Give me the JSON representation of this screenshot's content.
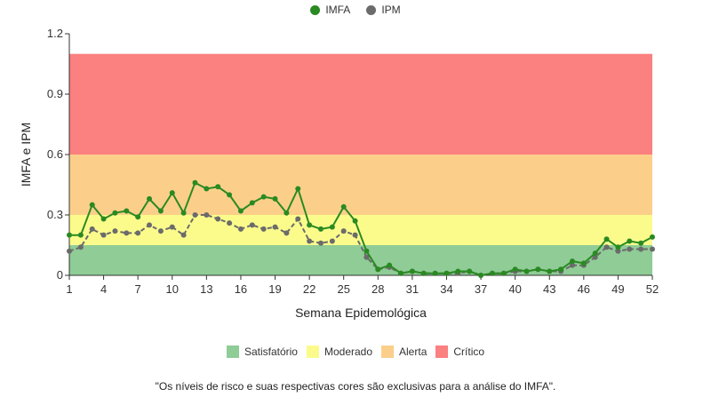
{
  "chart_data": {
    "type": "line",
    "title": "",
    "xlabel": "Semana Epidemológica",
    "ylabel": "IMFA e IPM",
    "xlim": [
      1,
      52
    ],
    "ylim": [
      0,
      1.2
    ],
    "x_ticks": [
      1,
      4,
      7,
      10,
      13,
      16,
      19,
      22,
      25,
      28,
      31,
      34,
      37,
      40,
      43,
      46,
      49,
      52
    ],
    "y_ticks": [
      0,
      0.3,
      0.6,
      0.9,
      1.2
    ],
    "y_tick_labels": [
      "0",
      "0.3",
      "0.6",
      "0.9",
      "1.2"
    ],
    "x": [
      1,
      2,
      3,
      4,
      5,
      6,
      7,
      8,
      9,
      10,
      11,
      12,
      13,
      14,
      15,
      16,
      17,
      18,
      19,
      20,
      21,
      22,
      23,
      24,
      25,
      26,
      27,
      28,
      29,
      30,
      31,
      32,
      33,
      34,
      35,
      36,
      37,
      38,
      39,
      40,
      41,
      42,
      43,
      44,
      45,
      46,
      47,
      48,
      49,
      50,
      51,
      52
    ],
    "series": [
      {
        "name": "IMFA",
        "color": "#2a8a22",
        "style": "solid",
        "values": [
          0.2,
          0.2,
          0.35,
          0.28,
          0.31,
          0.32,
          0.29,
          0.38,
          0.32,
          0.41,
          0.31,
          0.46,
          0.43,
          0.44,
          0.4,
          0.32,
          0.36,
          0.39,
          0.38,
          0.31,
          0.43,
          0.25,
          0.23,
          0.24,
          0.34,
          0.27,
          0.12,
          0.03,
          0.05,
          0.01,
          0.02,
          0.01,
          0.01,
          0.01,
          0.02,
          0.02,
          0.0,
          0.01,
          0.01,
          0.03,
          0.02,
          0.03,
          0.02,
          0.03,
          0.07,
          0.06,
          0.11,
          0.18,
          0.14,
          0.17,
          0.16,
          0.19
        ]
      },
      {
        "name": "IPM",
        "color": "#6b6b6b",
        "style": "dashed",
        "values": [
          0.12,
          0.14,
          0.23,
          0.2,
          0.22,
          0.21,
          0.21,
          0.25,
          0.22,
          0.24,
          0.2,
          0.3,
          0.3,
          0.28,
          0.26,
          0.23,
          0.25,
          0.23,
          0.24,
          0.21,
          0.28,
          0.17,
          0.16,
          0.17,
          0.22,
          0.2,
          0.09,
          0.03,
          0.04,
          0.01,
          0.02,
          0.01,
          0.01,
          0.01,
          0.01,
          0.02,
          0.0,
          0.01,
          0.01,
          0.02,
          0.02,
          0.03,
          0.02,
          0.02,
          0.05,
          0.05,
          0.09,
          0.14,
          0.12,
          0.13,
          0.13,
          0.13
        ]
      }
    ],
    "bands": [
      {
        "label": "Satisfatório",
        "from": 0,
        "to": 0.15,
        "color": "#8fcc96"
      },
      {
        "label": "Moderado",
        "from": 0.15,
        "to": 0.3,
        "color": "#fbfb8c"
      },
      {
        "label": "Alerta",
        "from": 0.3,
        "to": 0.6,
        "color": "#fbcf8a"
      },
      {
        "label": "Crítico",
        "from": 0.6,
        "to": 1.1,
        "color": "#fb8080"
      }
    ],
    "legend_position": "top-center",
    "band_legend_position": "bottom-center",
    "grid": false
  },
  "footnote": "\"Os níveis de risco e suas respectivas cores são exclusivas para a análise do IMFA\"."
}
